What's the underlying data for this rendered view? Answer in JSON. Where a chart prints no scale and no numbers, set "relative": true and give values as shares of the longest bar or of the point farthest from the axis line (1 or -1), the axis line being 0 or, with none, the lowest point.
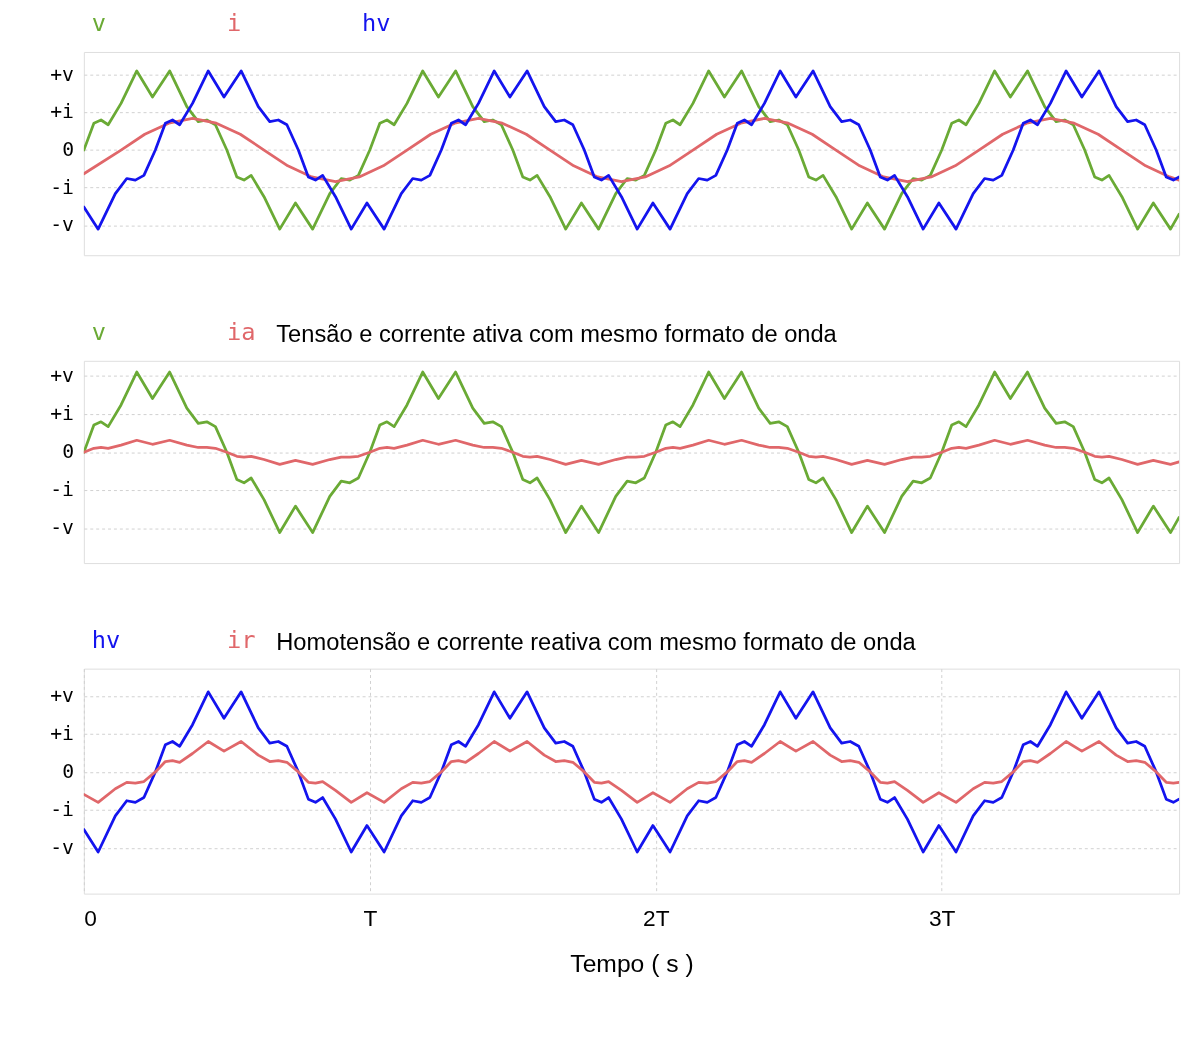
{
  "chart_data": [
    {
      "type": "line",
      "relative": true,
      "legend": "top left",
      "grid": "y",
      "line_style": "solid",
      "xlim": [
        0,
        3.83
      ],
      "annotations": [
        "+v",
        "+i",
        "0",
        "-i",
        "-v"
      ],
      "x": [
        0,
        0.035,
        0.06,
        0.085,
        0.13,
        0.185,
        0.24,
        0.3,
        0.36,
        0.4,
        0.43,
        0.46,
        0.5,
        0.535,
        0.56,
        0.585,
        0.63,
        0.685,
        0.74,
        0.8,
        0.86,
        0.9,
        0.93,
        0.96,
        1,
        1.035,
        1.06,
        1.085,
        1.13,
        1.185,
        1.24,
        1.3,
        1.36,
        1.4,
        1.43,
        1.46,
        1.5,
        1.535,
        1.56,
        1.585,
        1.63,
        1.685,
        1.74,
        1.8,
        1.86,
        1.9,
        1.93,
        1.96,
        2,
        2.035,
        2.06,
        2.085,
        2.13,
        2.185,
        2.24,
        2.3,
        2.36,
        2.4,
        2.43,
        2.46,
        2.5,
        2.535,
        2.56,
        2.585,
        2.63,
        2.685,
        2.74,
        2.8,
        2.86,
        2.9,
        2.93,
        2.96,
        3,
        3.035,
        3.06,
        3.085,
        3.13,
        3.185,
        3.24,
        3.3,
        3.36,
        3.4,
        3.43,
        3.46,
        3.5,
        3.535,
        3.56,
        3.585,
        3.63,
        3.685,
        3.74,
        3.8,
        3.83
      ],
      "series": [
        {
          "name": "v",
          "color": "#6aaa35",
          "values": [
            0,
            0.34,
            0.38,
            0.32,
            0.59,
            1,
            0.67,
            1,
            0.55,
            0.36,
            0.38,
            0.32,
            0,
            -0.34,
            -0.38,
            -0.32,
            -0.59,
            -1,
            -0.67,
            -1,
            -0.55,
            -0.36,
            -0.38,
            -0.32,
            0,
            0.34,
            0.38,
            0.32,
            0.59,
            1,
            0.67,
            1,
            0.55,
            0.36,
            0.38,
            0.32,
            0,
            -0.34,
            -0.38,
            -0.32,
            -0.59,
            -1,
            -0.67,
            -1,
            -0.55,
            -0.36,
            -0.38,
            -0.32,
            0,
            0.34,
            0.38,
            0.32,
            0.59,
            1,
            0.67,
            1,
            0.55,
            0.36,
            0.38,
            0.32,
            0,
            -0.34,
            -0.38,
            -0.32,
            -0.59,
            -1,
            -0.67,
            -1,
            -0.55,
            -0.36,
            -0.38,
            -0.32,
            0,
            0.34,
            0.38,
            0.32,
            0.59,
            1,
            0.67,
            1,
            0.55,
            0.36,
            0.38,
            0.32,
            0,
            -0.34,
            -0.38,
            -0.32,
            -0.59,
            -1,
            -0.67,
            -1,
            -0.81
          ]
        },
        {
          "name": "i",
          "color": "#e0676a",
          "x": [
            0,
            0.13,
            0.213,
            0.297,
            0.38,
            0.463,
            0.547,
            0.63,
            0.713,
            0.797,
            0.88,
            0.963,
            1.047,
            1.13,
            1.213,
            1.297,
            1.38,
            1.463,
            1.547,
            1.63,
            1.713,
            1.797,
            1.88,
            1.963,
            2.047,
            2.13,
            2.213,
            2.297,
            2.38,
            2.463,
            2.547,
            2.63,
            2.713,
            2.797,
            2.88,
            2.963,
            3.047,
            3.13,
            3.213,
            3.297,
            3.38,
            3.463,
            3.547,
            3.63,
            3.713,
            3.797,
            3.83
          ],
          "values": [
            -0.3,
            0,
            0.2,
            0.34,
            0.4,
            0.34,
            0.2,
            0,
            -0.2,
            -0.34,
            -0.4,
            -0.34,
            -0.2,
            0,
            0.2,
            0.34,
            0.4,
            0.34,
            0.2,
            0,
            -0.2,
            -0.34,
            -0.4,
            -0.34,
            -0.2,
            0,
            0.2,
            0.34,
            0.4,
            0.34,
            0.2,
            0,
            -0.2,
            -0.34,
            -0.4,
            -0.34,
            -0.2,
            0,
            0.2,
            0.34,
            0.4,
            0.34,
            0.2,
            0,
            -0.2,
            -0.34,
            -0.38
          ]
        },
        {
          "name": "hv",
          "color": "#1414ee",
          "x": [
            0,
            0.05,
            0.11,
            0.15,
            0.18,
            0.21,
            0.25,
            0.285,
            0.31,
            0.335,
            0.38,
            0.435,
            0.49,
            0.55,
            0.61,
            0.65,
            0.68,
            0.71,
            0.75,
            0.785,
            0.81,
            0.835,
            0.88,
            0.935,
            0.99,
            1.05,
            1.11,
            1.15,
            1.18,
            1.21,
            1.25,
            1.285,
            1.31,
            1.335,
            1.38,
            1.435,
            1.49,
            1.55,
            1.61,
            1.65,
            1.68,
            1.71,
            1.75,
            1.785,
            1.81,
            1.835,
            1.88,
            1.935,
            1.99,
            2.05,
            2.11,
            2.15,
            2.18,
            2.21,
            2.25,
            2.285,
            2.31,
            2.335,
            2.38,
            2.435,
            2.49,
            2.55,
            2.61,
            2.65,
            2.68,
            2.71,
            2.75,
            2.785,
            2.81,
            2.835,
            2.88,
            2.935,
            2.99,
            3.05,
            3.11,
            3.15,
            3.18,
            3.21,
            3.25,
            3.285,
            3.31,
            3.335,
            3.38,
            3.435,
            3.49,
            3.55,
            3.61,
            3.65,
            3.68,
            3.71,
            3.75,
            3.785,
            3.81,
            3.83
          ],
          "values": [
            -0.72,
            -1,
            -0.55,
            -0.36,
            -0.38,
            -0.32,
            0,
            0.34,
            0.38,
            0.32,
            0.59,
            1,
            0.67,
            1,
            0.55,
            0.36,
            0.38,
            0.32,
            0,
            -0.34,
            -0.38,
            -0.32,
            -0.59,
            -1,
            -0.67,
            -1,
            -0.55,
            -0.36,
            -0.38,
            -0.32,
            0,
            0.34,
            0.38,
            0.32,
            0.59,
            1,
            0.67,
            1,
            0.55,
            0.36,
            0.38,
            0.32,
            0,
            -0.34,
            -0.38,
            -0.32,
            -0.59,
            -1,
            -0.67,
            -1,
            -0.55,
            -0.36,
            -0.38,
            -0.32,
            0,
            0.34,
            0.38,
            0.32,
            0.59,
            1,
            0.67,
            1,
            0.55,
            0.36,
            0.38,
            0.32,
            0,
            -0.34,
            -0.38,
            -0.32,
            -0.59,
            -1,
            -0.67,
            -1,
            -0.55,
            -0.36,
            -0.38,
            -0.32,
            0,
            0.34,
            0.38,
            0.32,
            0.59,
            1,
            0.67,
            1,
            0.55,
            0.36,
            0.38,
            0.32,
            0,
            -0.34,
            -0.38,
            -0.34
          ]
        }
      ]
    },
    {
      "type": "line",
      "relative": true,
      "title": "Tensão e corrente ativa com mesmo formato de onda",
      "legend": "top left",
      "grid": "y",
      "line_style": "solid",
      "xlim": [
        0,
        3.83
      ],
      "annotations": [
        "+v",
        "+i",
        "0",
        "-i",
        "-v"
      ],
      "x": [
        0,
        0.035,
        0.06,
        0.085,
        0.13,
        0.185,
        0.24,
        0.3,
        0.36,
        0.4,
        0.43,
        0.46,
        0.5,
        0.535,
        0.56,
        0.585,
        0.63,
        0.685,
        0.74,
        0.8,
        0.86,
        0.9,
        0.93,
        0.96,
        1,
        1.035,
        1.06,
        1.085,
        1.13,
        1.185,
        1.24,
        1.3,
        1.36,
        1.4,
        1.43,
        1.46,
        1.5,
        1.535,
        1.56,
        1.585,
        1.63,
        1.685,
        1.74,
        1.8,
        1.86,
        1.9,
        1.93,
        1.96,
        2,
        2.035,
        2.06,
        2.085,
        2.13,
        2.185,
        2.24,
        2.3,
        2.36,
        2.4,
        2.43,
        2.46,
        2.5,
        2.535,
        2.56,
        2.585,
        2.63,
        2.685,
        2.74,
        2.8,
        2.86,
        2.9,
        2.93,
        2.96,
        3,
        3.035,
        3.06,
        3.085,
        3.13,
        3.185,
        3.24,
        3.3,
        3.36,
        3.4,
        3.43,
        3.46,
        3.5,
        3.535,
        3.56,
        3.585,
        3.63,
        3.685,
        3.74,
        3.8,
        3.83
      ],
      "series": [
        {
          "name": "v",
          "color": "#6aaa35",
          "values": [
            0,
            0.34,
            0.38,
            0.32,
            0.59,
            1,
            0.67,
            1,
            0.55,
            0.36,
            0.38,
            0.32,
            0,
            -0.34,
            -0.38,
            -0.32,
            -0.59,
            -1,
            -0.67,
            -1,
            -0.55,
            -0.36,
            -0.38,
            -0.32,
            0,
            0.34,
            0.38,
            0.32,
            0.59,
            1,
            0.67,
            1,
            0.55,
            0.36,
            0.38,
            0.32,
            0,
            -0.34,
            -0.38,
            -0.32,
            -0.59,
            -1,
            -0.67,
            -1,
            -0.55,
            -0.36,
            -0.38,
            -0.32,
            0,
            0.34,
            0.38,
            0.32,
            0.59,
            1,
            0.67,
            1,
            0.55,
            0.36,
            0.38,
            0.32,
            0,
            -0.34,
            -0.38,
            -0.32,
            -0.59,
            -1,
            -0.67,
            -1,
            -0.55,
            -0.36,
            -0.38,
            -0.32,
            0,
            0.34,
            0.38,
            0.32,
            0.59,
            1,
            0.67,
            1,
            0.55,
            0.36,
            0.38,
            0.32,
            0,
            -0.34,
            -0.38,
            -0.32,
            -0.59,
            -1,
            -0.67,
            -1,
            -0.81
          ]
        },
        {
          "name": "ia",
          "color": "#e0676a",
          "values": [
            0,
            0.05,
            0.06,
            0.05,
            0.09,
            0.15,
            0.1,
            0.15,
            0.09,
            0.06,
            0.06,
            0.05,
            0,
            -0.05,
            -0.06,
            -0.05,
            -0.09,
            -0.15,
            -0.1,
            -0.15,
            -0.09,
            -0.06,
            -0.06,
            -0.05,
            0,
            0.05,
            0.06,
            0.05,
            0.09,
            0.15,
            0.1,
            0.15,
            0.09,
            0.06,
            0.06,
            0.05,
            0,
            -0.05,
            -0.06,
            -0.05,
            -0.09,
            -0.15,
            -0.1,
            -0.15,
            -0.09,
            -0.06,
            -0.06,
            -0.05,
            0,
            0.05,
            0.06,
            0.05,
            0.09,
            0.15,
            0.1,
            0.15,
            0.09,
            0.06,
            0.06,
            0.05,
            0,
            -0.05,
            -0.06,
            -0.05,
            -0.09,
            -0.15,
            -0.1,
            -0.15,
            -0.09,
            -0.06,
            -0.06,
            -0.05,
            0,
            0.05,
            0.06,
            0.05,
            0.09,
            0.15,
            0.1,
            0.15,
            0.09,
            0.06,
            0.06,
            0.05,
            0,
            -0.05,
            -0.06,
            -0.05,
            -0.09,
            -0.15,
            -0.1,
            -0.15,
            -0.12
          ]
        }
      ]
    },
    {
      "type": "line",
      "relative": true,
      "title": "Homotensão e corrente reativa com mesmo formato de onda",
      "legend": "top left",
      "grid": true,
      "line_style": "solid",
      "xlabel": "Tempo ( s )",
      "xlim": [
        0,
        3.83
      ],
      "xticks": [
        0,
        {
          "value": 1,
          "label": "T"
        },
        {
          "value": 2,
          "label": "2T"
        },
        {
          "value": 3,
          "label": "3T"
        }
      ],
      "annotations": [
        "+v",
        "+i",
        "0",
        "-i",
        "-v"
      ],
      "x": [
        0,
        0.05,
        0.11,
        0.15,
        0.18,
        0.21,
        0.25,
        0.285,
        0.31,
        0.335,
        0.38,
        0.435,
        0.49,
        0.55,
        0.61,
        0.65,
        0.68,
        0.71,
        0.75,
        0.785,
        0.81,
        0.835,
        0.88,
        0.935,
        0.99,
        1.05,
        1.11,
        1.15,
        1.18,
        1.21,
        1.25,
        1.285,
        1.31,
        1.335,
        1.38,
        1.435,
        1.49,
        1.55,
        1.61,
        1.65,
        1.68,
        1.71,
        1.75,
        1.785,
        1.81,
        1.835,
        1.88,
        1.935,
        1.99,
        2.05,
        2.11,
        2.15,
        2.18,
        2.21,
        2.25,
        2.285,
        2.31,
        2.335,
        2.38,
        2.435,
        2.49,
        2.55,
        2.61,
        2.65,
        2.68,
        2.71,
        2.75,
        2.785,
        2.81,
        2.835,
        2.88,
        2.935,
        2.99,
        3.05,
        3.11,
        3.15,
        3.18,
        3.21,
        3.25,
        3.285,
        3.31,
        3.335,
        3.38,
        3.435,
        3.49,
        3.55,
        3.61,
        3.65,
        3.68,
        3.71,
        3.75,
        3.785,
        3.81,
        3.83
      ],
      "series": [
        {
          "name": "hv",
          "color": "#1414ee",
          "values": [
            -0.72,
            -1,
            -0.55,
            -0.36,
            -0.38,
            -0.32,
            0,
            0.34,
            0.38,
            0.32,
            0.59,
            1,
            0.67,
            1,
            0.55,
            0.36,
            0.38,
            0.32,
            0,
            -0.34,
            -0.38,
            -0.32,
            -0.59,
            -1,
            -0.67,
            -1,
            -0.55,
            -0.36,
            -0.38,
            -0.32,
            0,
            0.34,
            0.38,
            0.32,
            0.59,
            1,
            0.67,
            1,
            0.55,
            0.36,
            0.38,
            0.32,
            0,
            -0.34,
            -0.38,
            -0.32,
            -0.59,
            -1,
            -0.67,
            -1,
            -0.55,
            -0.36,
            -0.38,
            -0.32,
            0,
            0.34,
            0.38,
            0.32,
            0.59,
            1,
            0.67,
            1,
            0.55,
            0.36,
            0.38,
            0.32,
            0,
            -0.34,
            -0.38,
            -0.32,
            -0.59,
            -1,
            -0.67,
            -1,
            -0.55,
            -0.36,
            -0.38,
            -0.32,
            0,
            0.34,
            0.38,
            0.32,
            0.59,
            1,
            0.67,
            1,
            0.55,
            0.36,
            0.38,
            0.32,
            0,
            -0.34,
            -0.38,
            -0.34
          ]
        },
        {
          "name": "ir",
          "color": "#e0676a",
          "values": [
            -0.28,
            -0.38,
            -0.21,
            -0.13,
            -0.14,
            -0.12,
            0,
            0.13,
            0.14,
            0.12,
            0.23,
            0.38,
            0.26,
            0.38,
            0.21,
            0.13,
            0.14,
            0.12,
            0,
            -0.13,
            -0.14,
            -0.12,
            -0.23,
            -0.38,
            -0.26,
            -0.38,
            -0.21,
            -0.13,
            -0.14,
            -0.12,
            0,
            0.13,
            0.14,
            0.12,
            0.23,
            0.38,
            0.26,
            0.38,
            0.21,
            0.13,
            0.14,
            0.12,
            0,
            -0.13,
            -0.14,
            -0.12,
            -0.23,
            -0.38,
            -0.26,
            -0.38,
            -0.21,
            -0.13,
            -0.14,
            -0.12,
            0,
            0.13,
            0.14,
            0.12,
            0.23,
            0.38,
            0.26,
            0.38,
            0.21,
            0.13,
            0.14,
            0.12,
            0,
            -0.13,
            -0.14,
            -0.12,
            -0.23,
            -0.38,
            -0.26,
            -0.38,
            -0.21,
            -0.13,
            -0.14,
            -0.12,
            0,
            0.13,
            0.14,
            0.12,
            0.23,
            0.38,
            0.26,
            0.38,
            0.21,
            0.13,
            0.14,
            0.12,
            0,
            -0.13,
            -0.14,
            -0.13
          ]
        }
      ]
    }
  ]
}
